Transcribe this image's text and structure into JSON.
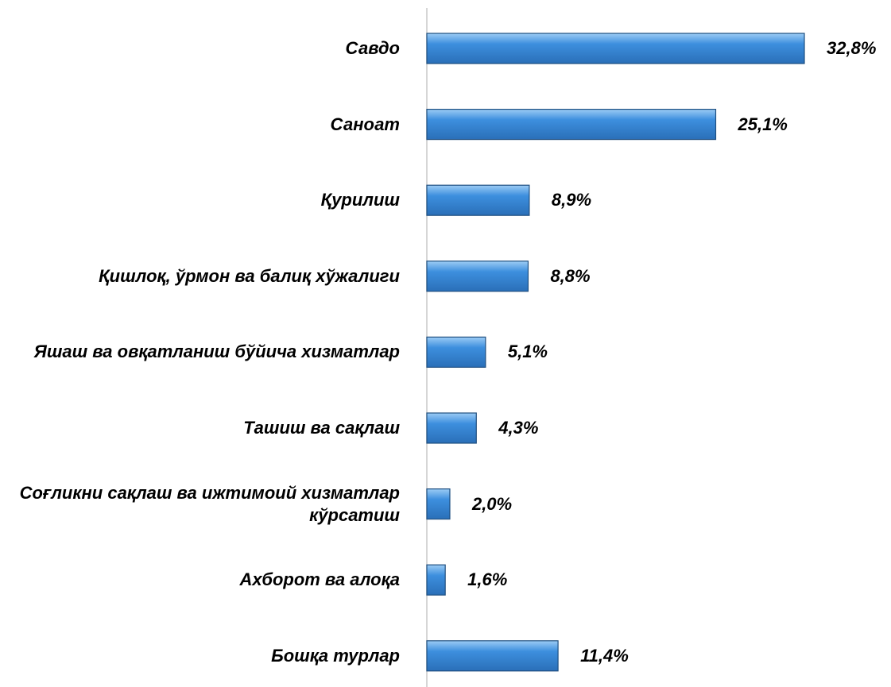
{
  "chart_data": {
    "type": "bar",
    "orientation": "horizontal",
    "categories": [
      "Савдо",
      "Саноат",
      "Қурилиш",
      "Қишлоқ, ўрмон ва балиқ хўжалиги",
      "Яшаш ва овқатланиш бўйича хизматлар",
      "Ташиш ва сақлаш",
      "Соғликни сақлаш ва ижтимоий хизматлар кўрсатиш",
      "Ахборот ва алоқа",
      "Бошқа турлар"
    ],
    "values": [
      32.8,
      25.1,
      8.9,
      8.8,
      5.1,
      4.3,
      2.0,
      1.6,
      11.4
    ],
    "value_labels": [
      "32,8%",
      "25,1%",
      "8,9%",
      "8,8%",
      "5,1%",
      "4,3%",
      "2,0%",
      "1,6%",
      "11,4%"
    ],
    "color": "#3d8fde"
  }
}
